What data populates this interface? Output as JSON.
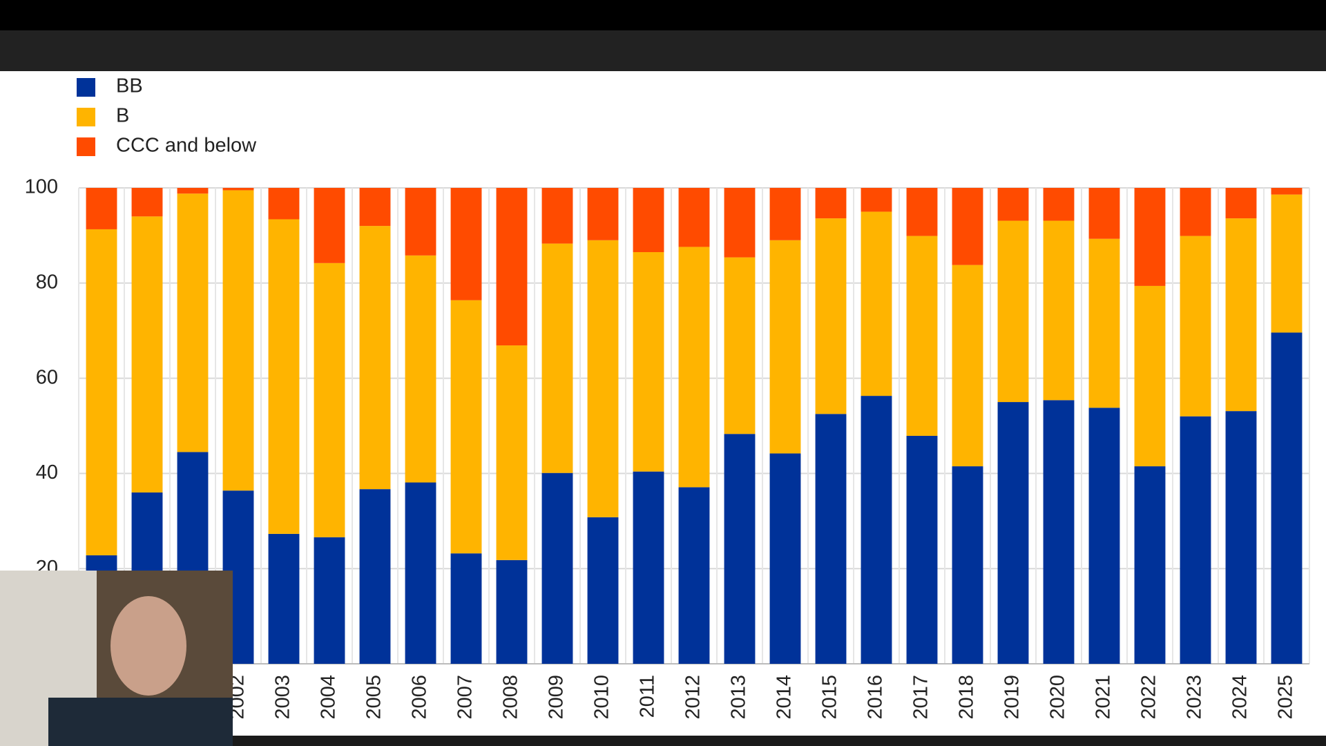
{
  "chart_data": {
    "type": "stacked_bar",
    "categories": [
      null,
      null,
      null,
      "2002",
      "2003",
      "2004",
      "2005",
      "2006",
      "2007",
      "2008",
      "2009",
      "2010",
      "2011",
      "2012",
      "2013",
      "2014",
      "2015",
      "2016",
      "2017",
      "2018",
      "2019",
      "2020",
      "2021",
      "2022",
      "2023",
      "2024",
      "2025"
    ],
    "series": [
      {
        "name": "BB",
        "color": "#003299",
        "values": [
          22.8,
          36.0,
          44.5,
          36.4,
          27.3,
          26.6,
          36.7,
          38.1,
          23.2,
          21.8,
          40.1,
          30.8,
          40.4,
          37.1,
          48.3,
          44.2,
          52.5,
          56.3,
          47.9,
          41.5,
          55.0,
          55.4,
          53.8,
          41.5,
          52.0,
          53.1,
          69.6
        ]
      },
      {
        "name": "B",
        "color": "#ffb400",
        "values": [
          68.5,
          58.0,
          54.3,
          63.1,
          66.1,
          57.6,
          55.3,
          47.7,
          53.2,
          45.1,
          48.2,
          58.2,
          46.1,
          50.5,
          37.1,
          44.8,
          41.1,
          38.7,
          42.0,
          42.3,
          38.1,
          37.7,
          35.5,
          37.9,
          37.9,
          40.5,
          29.0
        ]
      },
      {
        "name": "CCC and below",
        "color": "#ff4b00",
        "values": [
          8.7,
          6.0,
          1.2,
          0.5,
          6.6,
          15.8,
          8.0,
          14.2,
          23.6,
          33.1,
          11.7,
          11.0,
          13.5,
          12.4,
          14.6,
          11.0,
          6.4,
          5.0,
          10.1,
          16.2,
          6.9,
          6.9,
          10.7,
          20.6,
          10.1,
          6.4,
          1.4
        ]
      }
    ],
    "ylim": [
      0,
      100
    ],
    "yticks": [
      20,
      40,
      60,
      80,
      100
    ],
    "grid": true,
    "legend": "top-left"
  }
}
